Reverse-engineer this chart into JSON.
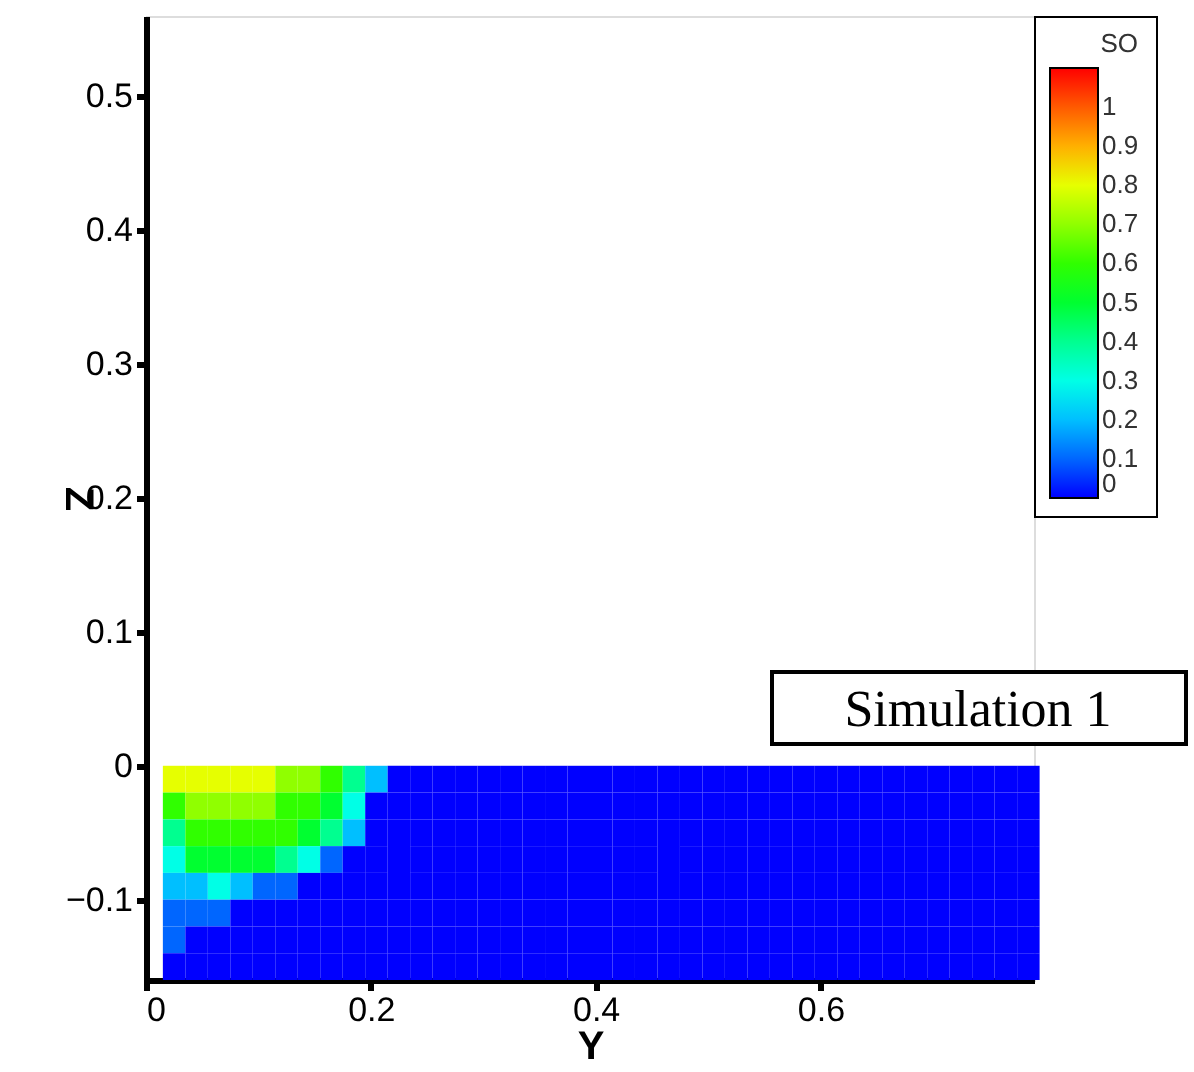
{
  "chart_data": {
    "type": "heatmap",
    "xlabel": "Y",
    "ylabel": "Z",
    "clabel": "SO",
    "xlim": [
      0,
      0.79
    ],
    "ylim": [
      -0.16,
      0.56
    ],
    "xticks": [
      0,
      0.2,
      0.4,
      0.6
    ],
    "yticks": [
      -0.1,
      0,
      0.1,
      0.2,
      0.3,
      0.4,
      0.5
    ],
    "grid": false,
    "clim": [
      0,
      1.1
    ],
    "cticks": [
      0,
      0.1,
      0.2,
      0.3,
      0.4,
      0.5,
      0.6,
      0.7,
      0.8,
      0.9,
      1
    ],
    "colors": [
      "#0000ff",
      "#0066ff",
      "#00bfff",
      "#00ffe6",
      "#00ff90",
      "#00ff30",
      "#30ff00",
      "#90ff00",
      "#e6ff00",
      "#ffb000",
      "#ff5a00",
      "#ff0000"
    ],
    "x": [
      0.025,
      0.045,
      0.065,
      0.085,
      0.105,
      0.125,
      0.145,
      0.165,
      0.185,
      0.205,
      0.225,
      0.245,
      0.265,
      0.285,
      0.305,
      0.325,
      0.345,
      0.365,
      0.385,
      0.405,
      0.425,
      0.445,
      0.465,
      0.485,
      0.505,
      0.525,
      0.545,
      0.565,
      0.585,
      0.605,
      0.625,
      0.645,
      0.665,
      0.685,
      0.705,
      0.725,
      0.745,
      0.765,
      0.785
    ],
    "y": [
      -0.01,
      -0.03,
      -0.05,
      -0.07,
      -0.09,
      -0.11,
      -0.13,
      -0.15
    ],
    "cells": [
      [
        0.8,
        0.8,
        0.8,
        0.8,
        0.8,
        0.7,
        0.7,
        0.6,
        0.4,
        0.2,
        0,
        0,
        0,
        0,
        0,
        0,
        0,
        0,
        0,
        0,
        0,
        0,
        0,
        0,
        0,
        0,
        0,
        0,
        0,
        0,
        0,
        0,
        0,
        0,
        0,
        0,
        0,
        0,
        0
      ],
      [
        0.6,
        0.7,
        0.7,
        0.7,
        0.7,
        0.6,
        0.6,
        0.5,
        0.3,
        0,
        0,
        0,
        0,
        0,
        0,
        0,
        0,
        0,
        0,
        0,
        0,
        0,
        0,
        0,
        0,
        0,
        0,
        0,
        0,
        0,
        0,
        0,
        0,
        0,
        0,
        0,
        0,
        0,
        0
      ],
      [
        0.4,
        0.6,
        0.6,
        0.6,
        0.6,
        0.6,
        0.5,
        0.4,
        0.2,
        0,
        0,
        0,
        0,
        0,
        0,
        0,
        0,
        0,
        0,
        0,
        0,
        0,
        0,
        0,
        0,
        0,
        0,
        0,
        0,
        0,
        0,
        0,
        0,
        0,
        0,
        0,
        0,
        0,
        0
      ],
      [
        0.3,
        0.5,
        0.5,
        0.5,
        0.5,
        0.4,
        0.3,
        0.1,
        0,
        0,
        0,
        0,
        0,
        0,
        0,
        0,
        0,
        0,
        0,
        0,
        0,
        0,
        0,
        0,
        0,
        0,
        0,
        0,
        0,
        0,
        0,
        0,
        0,
        0,
        0,
        0,
        0,
        0,
        0
      ],
      [
        0.2,
        0.2,
        0.3,
        0.2,
        0.1,
        0.1,
        0,
        0,
        0,
        0,
        0,
        0,
        0,
        0,
        0,
        0,
        0,
        0,
        0,
        0,
        0,
        0,
        0,
        0,
        0,
        0,
        0,
        0,
        0,
        0,
        0,
        0,
        0,
        0,
        0,
        0,
        0,
        0,
        0
      ],
      [
        0.1,
        0.1,
        0.1,
        0,
        0,
        0,
        0,
        0,
        0,
        0,
        0,
        0,
        0,
        0,
        0,
        0,
        0,
        0,
        0,
        0,
        0,
        0,
        0,
        0,
        0,
        0,
        0,
        0,
        0,
        0,
        0,
        0,
        0,
        0,
        0,
        0,
        0,
        0,
        0
      ],
      [
        0.1,
        0,
        0,
        0,
        0,
        0,
        0,
        0,
        0,
        0,
        0,
        0,
        0,
        0,
        0,
        0,
        0,
        0,
        0,
        0,
        0,
        0,
        0,
        0,
        0,
        0,
        0,
        0,
        0,
        0,
        0,
        0,
        0,
        0,
        0,
        0,
        0,
        0,
        0
      ],
      [
        0,
        0,
        0,
        0,
        0,
        0,
        0,
        0,
        0,
        0,
        0,
        0,
        0,
        0,
        0,
        0,
        0,
        0,
        0,
        0,
        0,
        0,
        0,
        0,
        0,
        0,
        0,
        0,
        0,
        0,
        0,
        0,
        0,
        0,
        0,
        0,
        0,
        0,
        0
      ]
    ],
    "annotations": [
      "Simulation 1"
    ]
  }
}
